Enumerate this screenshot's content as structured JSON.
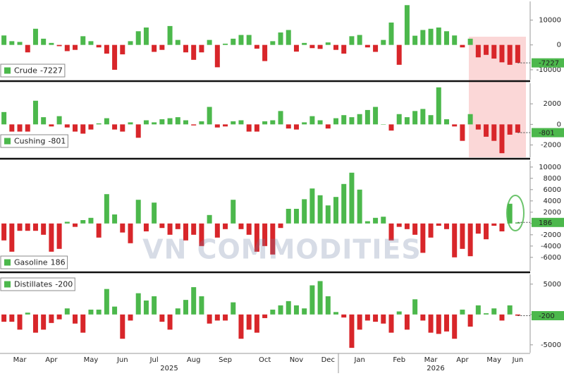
{
  "chart_data": [
    {
      "type": "bar",
      "series": [
        {
          "name": "Crude",
          "color": "#4cb84c",
          "negative_color": "#d8262a",
          "values": [
            3800,
            1500,
            1200,
            -3000,
            6500,
            2500,
            800,
            -500,
            -2500,
            -2000,
            3500,
            1500,
            -1000,
            -3500,
            -10000,
            -3800,
            1500,
            5500,
            7000,
            -2800,
            -2000,
            7600,
            2000,
            -3000,
            -6000,
            -3000,
            2000,
            -9000,
            500,
            2500,
            4000,
            4000,
            -1500,
            -6500,
            1500,
            5000,
            6000,
            -2700,
            800,
            -1300,
            -1600,
            1000,
            -2000,
            -3500,
            3500,
            4000,
            -1000,
            -2800,
            2000,
            9000,
            -8000,
            16000,
            3700,
            6000,
            6500,
            7000,
            5500,
            3800,
            -1000,
            2500,
            -5000,
            -4000,
            -5500,
            -7000,
            -8000,
            -7227
          ]
        }
      ],
      "ylim": [
        -14000,
        17500
      ],
      "yticks": [
        -10000,
        0,
        10000
      ]
    },
    {
      "type": "bar",
      "series": [
        {
          "name": "Cushing",
          "color": "#4cb84c",
          "negative_color": "#d8262a",
          "values": [
            1200,
            -700,
            -700,
            -700,
            2300,
            700,
            -200,
            800,
            -300,
            -700,
            -900,
            -500,
            100,
            600,
            -500,
            -700,
            200,
            -1300,
            400,
            200,
            500,
            600,
            700,
            400,
            -100,
            300,
            1700,
            -300,
            -200,
            300,
            400,
            -700,
            -700,
            300,
            400,
            1300,
            -400,
            -500,
            200,
            800,
            400,
            -400,
            600,
            900,
            700,
            1000,
            1400,
            1700,
            0,
            -600,
            1000,
            700,
            1300,
            1500,
            900,
            3600,
            500,
            -200,
            -1600,
            1000,
            -500,
            -1200,
            -1600,
            -2800,
            -1000,
            -801
          ]
        }
      ],
      "ylim": [
        -3200,
        4000
      ],
      "yticks": [
        -2000,
        0,
        2000
      ]
    },
    {
      "type": "bar",
      "series": [
        {
          "name": "Gasoline",
          "color": "#4cb84c",
          "negative_color": "#d8262a",
          "values": [
            -3000,
            -5000,
            -1300,
            -1300,
            -1300,
            -2000,
            -5000,
            -4500,
            300,
            -600,
            600,
            1000,
            -2500,
            5200,
            1600,
            -1600,
            -3500,
            4200,
            -1400,
            3700,
            -800,
            -2000,
            -1000,
            -3000,
            -2000,
            -4000,
            1500,
            -2500,
            -1000,
            4200,
            -1000,
            -2000,
            -5000,
            -4000,
            -5500,
            -800,
            2600,
            2600,
            4300,
            6200,
            5000,
            3200,
            4700,
            7000,
            9000,
            6000,
            400,
            1000,
            1200,
            -3000,
            -600,
            -1000,
            -2000,
            -5200,
            -2500,
            -400,
            -1000,
            -6000,
            -4500,
            -5800,
            -1800,
            -2800,
            -400,
            -1400,
            3500,
            186
          ]
        }
      ],
      "ylim": [
        -8400,
        11100
      ],
      "yticks": [
        -6000,
        -4000,
        -2000,
        0,
        2000,
        4000,
        6000,
        8000,
        10000
      ]
    },
    {
      "type": "bar",
      "series": [
        {
          "name": "Distillates",
          "color": "#4cb84c",
          "negative_color": "#d8262a",
          "values": [
            -1200,
            -1200,
            -2500,
            300,
            -3000,
            -2500,
            -1400,
            -800,
            1000,
            -1500,
            -3000,
            800,
            800,
            4200,
            1300,
            -4000,
            -1000,
            3500,
            2300,
            3000,
            -1200,
            -2500,
            1000,
            2400,
            4500,
            3000,
            -1500,
            -1000,
            -1000,
            2000,
            -4000,
            -2500,
            -3000,
            -600,
            800,
            1500,
            2200,
            1500,
            1000,
            4800,
            5500,
            3000,
            400,
            -500,
            -5500,
            -2500,
            -1000,
            -1200,
            -1500,
            -3000,
            500,
            -2500,
            2500,
            -1000,
            -3000,
            -3200,
            -2800,
            -4000,
            800,
            -2000,
            1500,
            200,
            1000,
            -1000,
            1500,
            -200
          ]
        }
      ],
      "ylim": [
        -6300,
        6600
      ],
      "yticks": [
        -5000,
        0,
        5000
      ],
      "categories": [
        null,
        null,
        "Mar",
        null,
        null,
        null,
        "Apr",
        null,
        null,
        null,
        null,
        "May",
        null,
        null,
        null,
        "Jun",
        null,
        null,
        null,
        "Jul",
        null,
        null,
        null,
        null,
        "Aug",
        null,
        null,
        null,
        "Sep",
        null,
        null,
        null,
        null,
        "Oct",
        null,
        null,
        null,
        "Nov",
        null,
        null,
        null,
        "Dec",
        null,
        null,
        null,
        "Jan",
        null,
        null,
        null,
        null,
        "Feb",
        null,
        null,
        null,
        "Mar",
        null,
        null,
        null,
        "Apr",
        null,
        null,
        null,
        "May",
        null,
        null,
        "Jun"
      ],
      "x_groups": [
        "2025",
        "2026"
      ],
      "watermark": "VN COMMODITIES"
    }
  ]
}
